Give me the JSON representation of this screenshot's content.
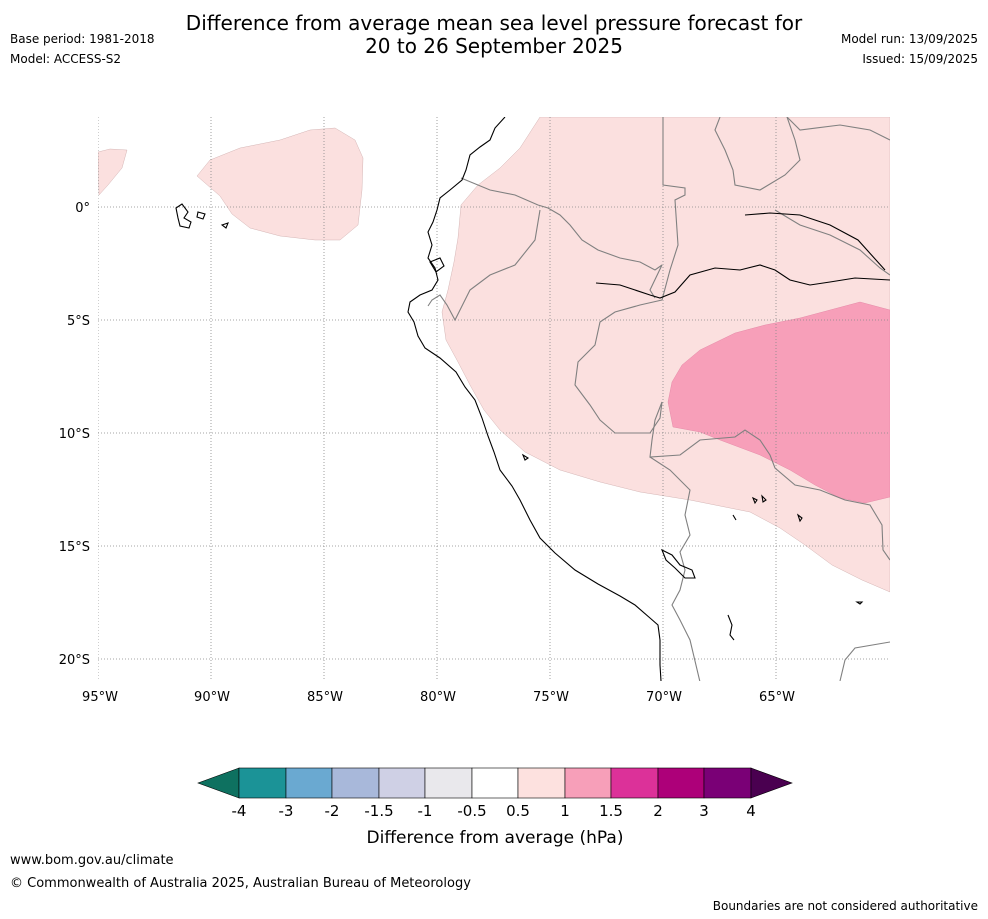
{
  "header": {
    "title_line1": "Difference from average mean sea level pressure forecast for",
    "title_line2": "20 to 26 September 2025",
    "base_period": "Base period: 1981-2018",
    "model": "Model: ACCESS-S2",
    "model_run": "Model run: 13/09/2025",
    "issued": "Issued: 15/09/2025"
  },
  "map": {
    "lat_labels": [
      "0°",
      "5°S",
      "10°S",
      "15°S",
      "20°S"
    ],
    "lon_labels": [
      "95°W",
      "90°W",
      "85°W",
      "80°W",
      "75°W",
      "70°W",
      "65°W"
    ],
    "colors": {
      "pale_pink": "#fbe0df",
      "mid_pink": "#f79fb9",
      "coast": "#000000",
      "border": "#808080",
      "grid": "#888888"
    }
  },
  "legend": {
    "title": "Difference from average (hPa)",
    "tick_labels": [
      "-4",
      "-3",
      "-2",
      "-1.5",
      "-1",
      "-0.5",
      "0.5",
      "1",
      "1.5",
      "2",
      "3",
      "4"
    ],
    "colors": [
      "#0e7160",
      "#1b9397",
      "#6aa9d1",
      "#a8b8da",
      "#cfd0e5",
      "#e9e8ec",
      "#ffffff",
      "#fde1df",
      "#f79fb9",
      "#dc3199",
      "#ad0079",
      "#7a0076",
      "#4a0050"
    ]
  },
  "footer": {
    "website": "www.bom.gov.au/climate",
    "copyright": "© Commonwealth of Australia 2025, Australian Bureau of Meteorology",
    "disclaimer": "Boundaries are not considered authoritative"
  }
}
